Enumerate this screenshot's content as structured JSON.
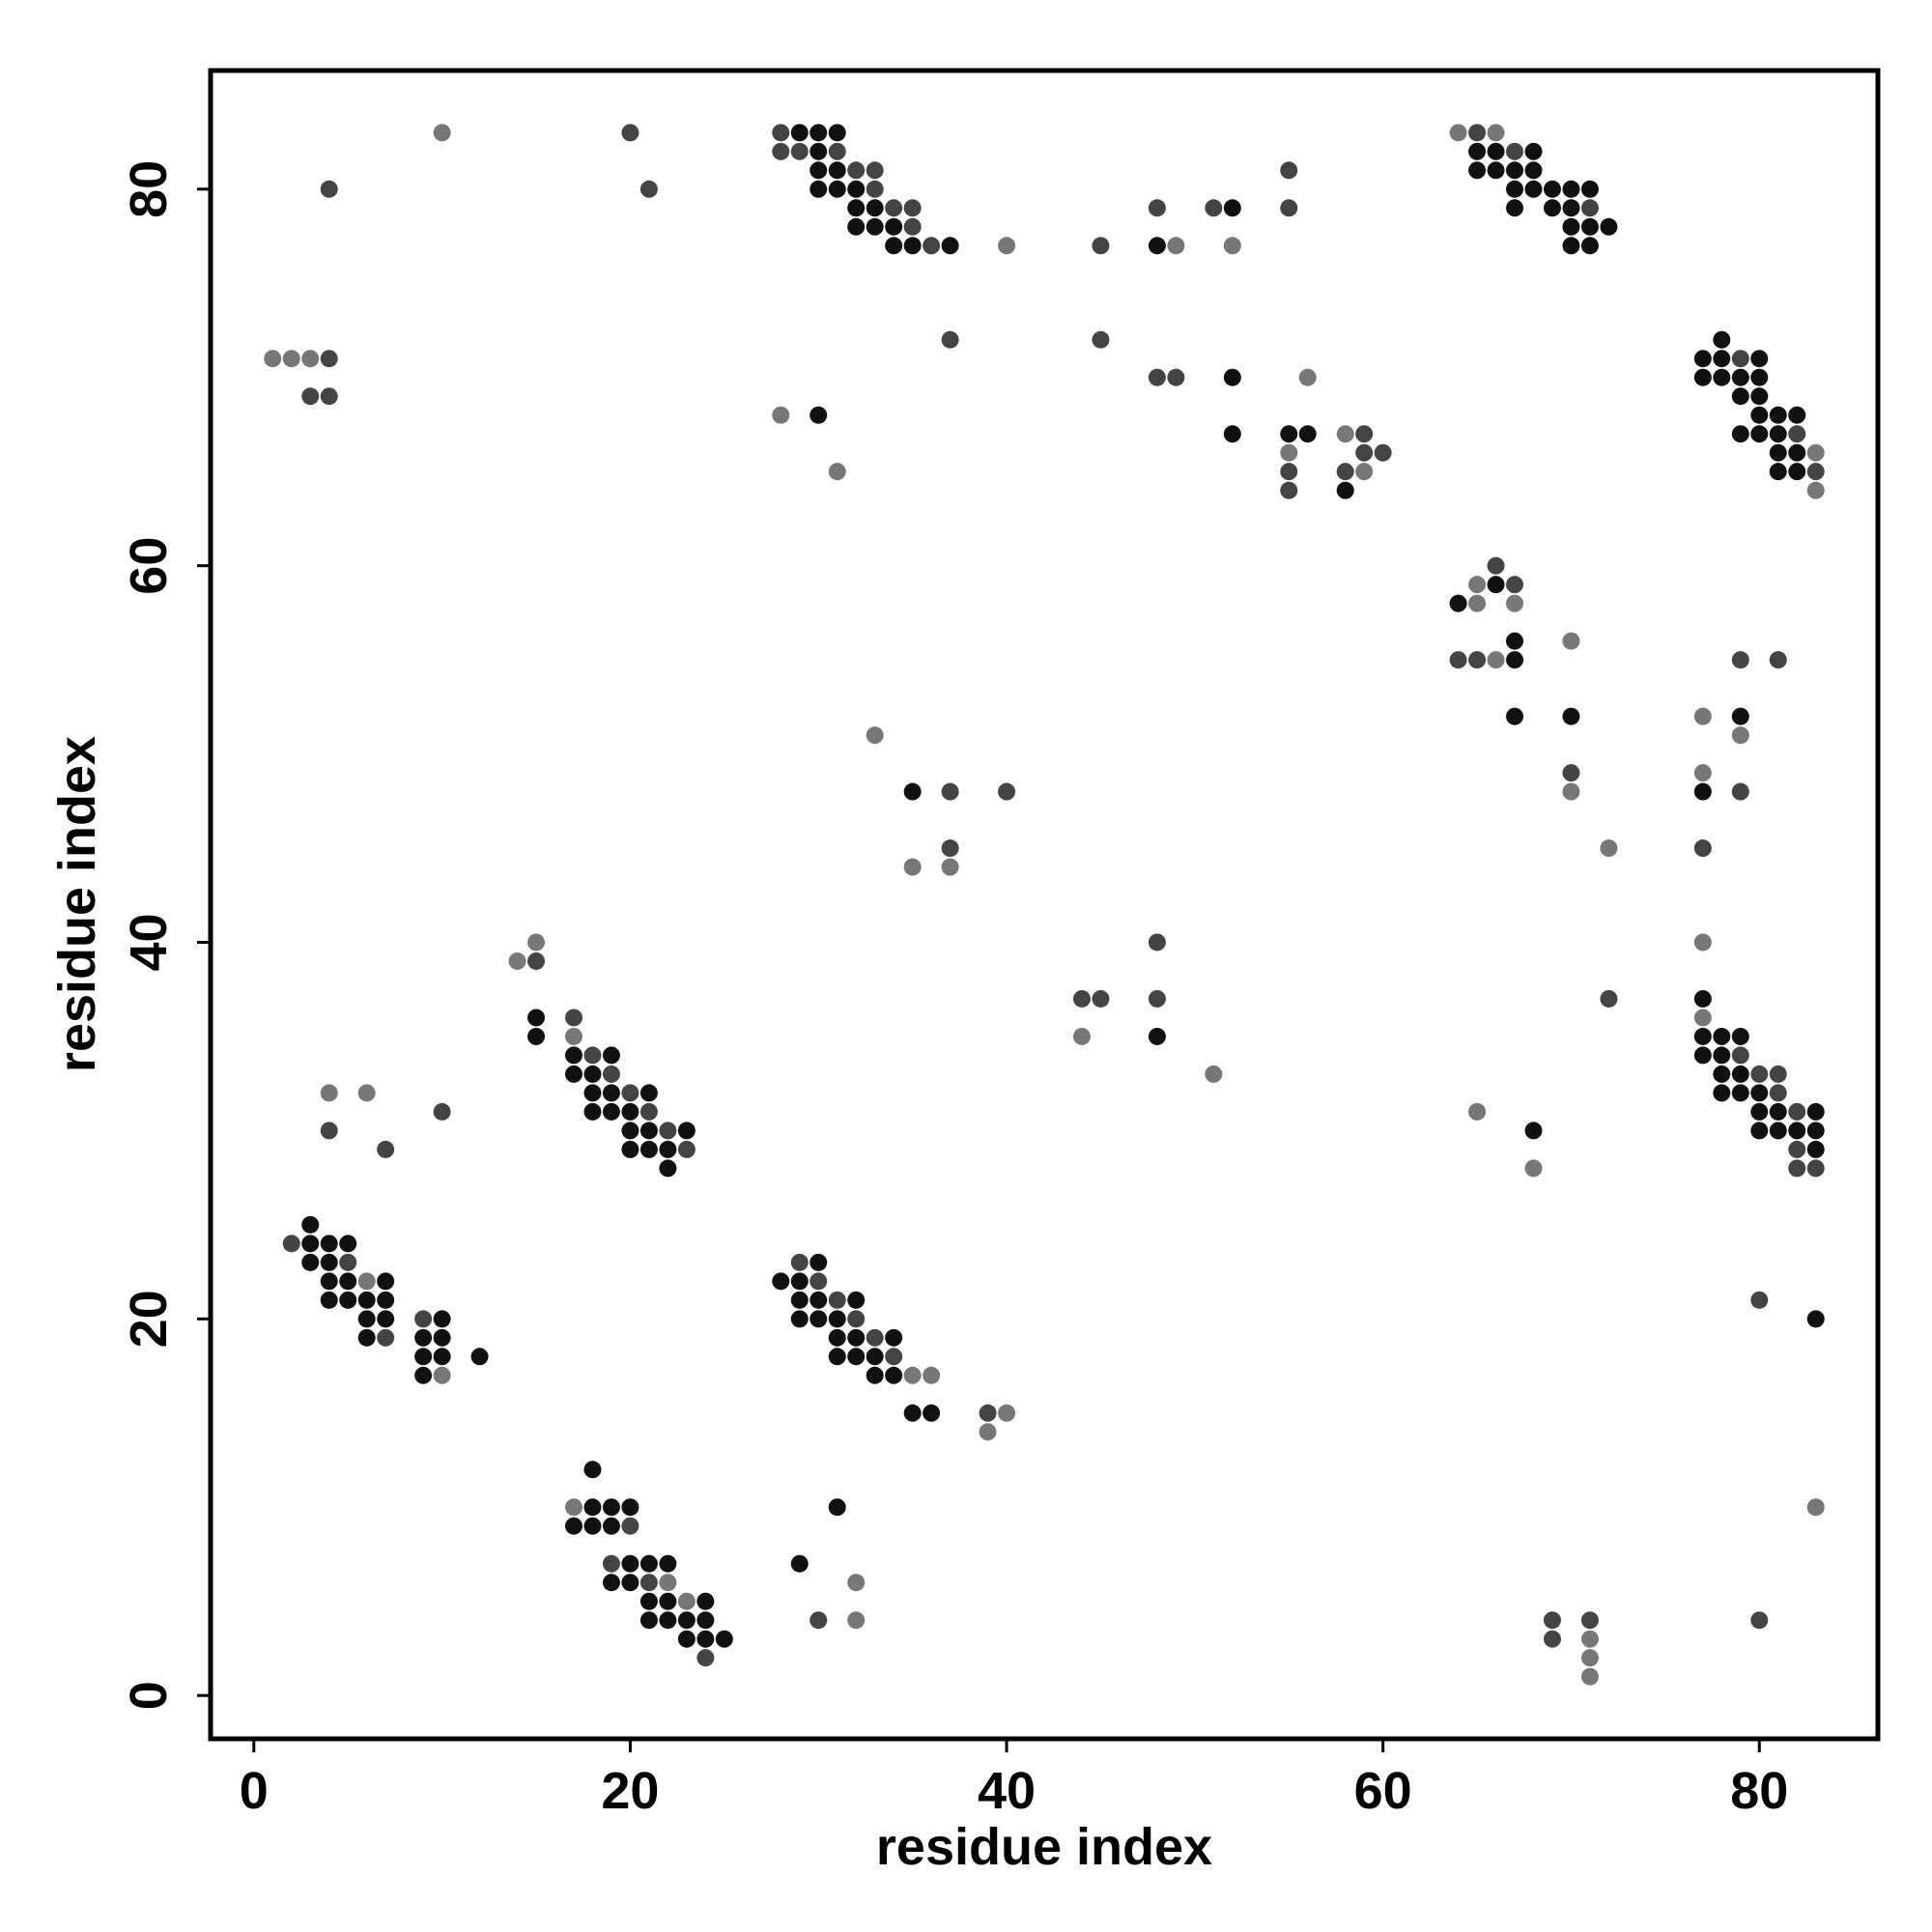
{
  "chart_data": {
    "type": "scatter",
    "title": "",
    "xlabel": "residue index",
    "ylabel": "residue index",
    "xlim": [
      -2.3,
      86.3
    ],
    "ylim": [
      -2.3,
      86.3
    ],
    "xticks": [
      0,
      20,
      40,
      60,
      80
    ],
    "yticks": [
      0,
      20,
      40,
      60,
      80
    ],
    "grid": false,
    "legend": "none",
    "colors": {
      "dark": "#111111",
      "medium": "#444444",
      "light": "#777777"
    },
    "points": [
      [
        10,
        83,
        "light"
      ],
      [
        20,
        83,
        "medium"
      ],
      [
        4,
        80,
        "medium"
      ],
      [
        21,
        80,
        "medium"
      ],
      [
        28,
        83,
        "medium"
      ],
      [
        29,
        83,
        "dark"
      ],
      [
        30,
        83,
        "dark"
      ],
      [
        31,
        83,
        "dark"
      ],
      [
        28,
        82,
        "medium"
      ],
      [
        29,
        82,
        "medium"
      ],
      [
        30,
        82,
        "dark"
      ],
      [
        31,
        82,
        "medium"
      ],
      [
        30,
        81,
        "dark"
      ],
      [
        31,
        81,
        "dark"
      ],
      [
        32,
        81,
        "medium"
      ],
      [
        33,
        81,
        "medium"
      ],
      [
        30,
        80,
        "dark"
      ],
      [
        31,
        80,
        "dark"
      ],
      [
        32,
        80,
        "dark"
      ],
      [
        33,
        80,
        "medium"
      ],
      [
        32,
        79,
        "dark"
      ],
      [
        33,
        79,
        "dark"
      ],
      [
        34,
        79,
        "medium"
      ],
      [
        35,
        79,
        "medium"
      ],
      [
        32,
        78,
        "dark"
      ],
      [
        33,
        78,
        "dark"
      ],
      [
        34,
        78,
        "dark"
      ],
      [
        35,
        78,
        "medium"
      ],
      [
        34,
        77,
        "dark"
      ],
      [
        35,
        77,
        "dark"
      ],
      [
        36,
        77,
        "medium"
      ],
      [
        37,
        77,
        "dark"
      ],
      [
        40,
        77,
        "light"
      ],
      [
        45,
        77,
        "medium"
      ],
      [
        48,
        79,
        "medium"
      ],
      [
        48,
        77,
        "dark"
      ],
      [
        49,
        77,
        "light"
      ],
      [
        51,
        79,
        "medium"
      ],
      [
        52,
        79,
        "dark"
      ],
      [
        52,
        77,
        "light"
      ],
      [
        55,
        81,
        "medium"
      ],
      [
        55,
        79,
        "medium"
      ],
      [
        64,
        83,
        "light"
      ],
      [
        65,
        83,
        "medium"
      ],
      [
        66,
        83,
        "light"
      ],
      [
        65,
        82,
        "dark"
      ],
      [
        66,
        82,
        "dark"
      ],
      [
        67,
        82,
        "medium"
      ],
      [
        68,
        82,
        "dark"
      ],
      [
        65,
        81,
        "dark"
      ],
      [
        66,
        81,
        "dark"
      ],
      [
        67,
        81,
        "dark"
      ],
      [
        68,
        81,
        "dark"
      ],
      [
        67,
        80,
        "dark"
      ],
      [
        68,
        80,
        "dark"
      ],
      [
        69,
        80,
        "dark"
      ],
      [
        70,
        80,
        "dark"
      ],
      [
        71,
        80,
        "dark"
      ],
      [
        67,
        79,
        "dark"
      ],
      [
        69,
        79,
        "dark"
      ],
      [
        70,
        79,
        "dark"
      ],
      [
        71,
        79,
        "medium"
      ],
      [
        70,
        78,
        "dark"
      ],
      [
        71,
        78,
        "dark"
      ],
      [
        72,
        78,
        "dark"
      ],
      [
        70,
        77,
        "dark"
      ],
      [
        71,
        77,
        "dark"
      ],
      [
        1,
        71,
        "light"
      ],
      [
        2,
        71,
        "light"
      ],
      [
        3,
        71,
        "light"
      ],
      [
        4,
        71,
        "medium"
      ],
      [
        3,
        69,
        "medium"
      ],
      [
        4,
        69,
        "medium"
      ],
      [
        37,
        72,
        "medium"
      ],
      [
        45,
        72,
        "medium"
      ],
      [
        48,
        70,
        "medium"
      ],
      [
        49,
        70,
        "medium"
      ],
      [
        52,
        70,
        "dark"
      ],
      [
        56,
        70,
        "light"
      ],
      [
        28,
        68,
        "light"
      ],
      [
        30,
        68,
        "dark"
      ],
      [
        31,
        65,
        "light"
      ],
      [
        52,
        67,
        "dark"
      ],
      [
        55,
        67,
        "dark"
      ],
      [
        56,
        67,
        "dark"
      ],
      [
        55,
        66,
        "light"
      ],
      [
        55,
        65,
        "medium"
      ],
      [
        55,
        64,
        "medium"
      ],
      [
        58,
        67,
        "light"
      ],
      [
        59,
        67,
        "medium"
      ],
      [
        59,
        66,
        "medium"
      ],
      [
        60,
        66,
        "medium"
      ],
      [
        58,
        65,
        "medium"
      ],
      [
        59,
        65,
        "light"
      ],
      [
        58,
        64,
        "dark"
      ],
      [
        78,
        72,
        "dark"
      ],
      [
        77,
        71,
        "dark"
      ],
      [
        78,
        71,
        "dark"
      ],
      [
        79,
        71,
        "medium"
      ],
      [
        80,
        71,
        "dark"
      ],
      [
        77,
        70,
        "dark"
      ],
      [
        78,
        70,
        "dark"
      ],
      [
        79,
        70,
        "dark"
      ],
      [
        80,
        70,
        "dark"
      ],
      [
        79,
        69,
        "dark"
      ],
      [
        80,
        69,
        "dark"
      ],
      [
        80,
        68,
        "dark"
      ],
      [
        81,
        68,
        "dark"
      ],
      [
        82,
        68,
        "dark"
      ],
      [
        79,
        67,
        "dark"
      ],
      [
        80,
        67,
        "dark"
      ],
      [
        81,
        67,
        "dark"
      ],
      [
        82,
        67,
        "medium"
      ],
      [
        81,
        66,
        "dark"
      ],
      [
        82,
        66,
        "dark"
      ],
      [
        83,
        66,
        "light"
      ],
      [
        81,
        65,
        "dark"
      ],
      [
        82,
        65,
        "dark"
      ],
      [
        83,
        65,
        "medium"
      ],
      [
        83,
        64,
        "light"
      ],
      [
        66,
        60,
        "medium"
      ],
      [
        65,
        59,
        "light"
      ],
      [
        66,
        59,
        "dark"
      ],
      [
        67,
        59,
        "medium"
      ],
      [
        64,
        58,
        "dark"
      ],
      [
        65,
        58,
        "light"
      ],
      [
        67,
        58,
        "light"
      ],
      [
        67,
        56,
        "dark"
      ],
      [
        64,
        55,
        "medium"
      ],
      [
        65,
        55,
        "medium"
      ],
      [
        66,
        55,
        "light"
      ],
      [
        67,
        55,
        "dark"
      ],
      [
        70,
        56,
        "light"
      ],
      [
        67,
        52,
        "dark"
      ],
      [
        70,
        52,
        "dark"
      ],
      [
        70,
        49,
        "medium"
      ],
      [
        70,
        48,
        "light"
      ],
      [
        72,
        45,
        "light"
      ],
      [
        72,
        37,
        "medium"
      ],
      [
        79,
        55,
        "medium"
      ],
      [
        81,
        55,
        "medium"
      ],
      [
        77,
        52,
        "light"
      ],
      [
        79,
        52,
        "dark"
      ],
      [
        79,
        51,
        "light"
      ],
      [
        77,
        49,
        "light"
      ],
      [
        77,
        48,
        "dark"
      ],
      [
        79,
        48,
        "medium"
      ],
      [
        77,
        45,
        "medium"
      ],
      [
        77,
        40,
        "light"
      ],
      [
        33,
        51,
        "light"
      ],
      [
        35,
        48,
        "dark"
      ],
      [
        37,
        48,
        "medium"
      ],
      [
        40,
        48,
        "medium"
      ],
      [
        37,
        45,
        "medium"
      ],
      [
        35,
        44,
        "light"
      ],
      [
        37,
        44,
        "light"
      ],
      [
        44,
        37,
        "medium"
      ],
      [
        45,
        37,
        "medium"
      ],
      [
        44,
        35,
        "light"
      ],
      [
        48,
        40,
        "medium"
      ],
      [
        48,
        37,
        "medium"
      ],
      [
        48,
        35,
        "dark"
      ],
      [
        51,
        33,
        "light"
      ],
      [
        15,
        40,
        "light"
      ],
      [
        14,
        39,
        "light"
      ],
      [
        15,
        39,
        "medium"
      ],
      [
        15,
        36,
        "dark"
      ],
      [
        15,
        35,
        "dark"
      ],
      [
        17,
        36,
        "medium"
      ],
      [
        17,
        35,
        "light"
      ],
      [
        17,
        34,
        "dark"
      ],
      [
        18,
        34,
        "medium"
      ],
      [
        19,
        34,
        "dark"
      ],
      [
        17,
        33,
        "dark"
      ],
      [
        18,
        33,
        "dark"
      ],
      [
        19,
        33,
        "medium"
      ],
      [
        18,
        32,
        "dark"
      ],
      [
        19,
        32,
        "dark"
      ],
      [
        20,
        32,
        "medium"
      ],
      [
        21,
        32,
        "dark"
      ],
      [
        18,
        31,
        "dark"
      ],
      [
        19,
        31,
        "dark"
      ],
      [
        20,
        31,
        "dark"
      ],
      [
        21,
        31,
        "medium"
      ],
      [
        20,
        30,
        "dark"
      ],
      [
        21,
        30,
        "dark"
      ],
      [
        22,
        30,
        "medium"
      ],
      [
        23,
        30,
        "dark"
      ],
      [
        20,
        29,
        "dark"
      ],
      [
        21,
        29,
        "dark"
      ],
      [
        22,
        29,
        "dark"
      ],
      [
        23,
        29,
        "medium"
      ],
      [
        22,
        28,
        "dark"
      ],
      [
        4,
        32,
        "light"
      ],
      [
        6,
        32,
        "light"
      ],
      [
        4,
        30,
        "medium"
      ],
      [
        7,
        29,
        "medium"
      ],
      [
        10,
        31,
        "medium"
      ],
      [
        77,
        37,
        "dark"
      ],
      [
        77,
        36,
        "light"
      ],
      [
        77,
        35,
        "dark"
      ],
      [
        78,
        35,
        "dark"
      ],
      [
        79,
        35,
        "dark"
      ],
      [
        77,
        34,
        "dark"
      ],
      [
        78,
        34,
        "dark"
      ],
      [
        79,
        34,
        "medium"
      ],
      [
        78,
        33,
        "dark"
      ],
      [
        79,
        33,
        "dark"
      ],
      [
        80,
        33,
        "medium"
      ],
      [
        81,
        33,
        "medium"
      ],
      [
        78,
        32,
        "dark"
      ],
      [
        79,
        32,
        "dark"
      ],
      [
        80,
        32,
        "dark"
      ],
      [
        81,
        32,
        "medium"
      ],
      [
        80,
        31,
        "dark"
      ],
      [
        81,
        31,
        "dark"
      ],
      [
        82,
        31,
        "medium"
      ],
      [
        83,
        31,
        "dark"
      ],
      [
        80,
        30,
        "dark"
      ],
      [
        81,
        30,
        "dark"
      ],
      [
        82,
        30,
        "dark"
      ],
      [
        83,
        30,
        "dark"
      ],
      [
        82,
        29,
        "medium"
      ],
      [
        83,
        29,
        "dark"
      ],
      [
        82,
        28,
        "medium"
      ],
      [
        83,
        28,
        "medium"
      ],
      [
        65,
        31,
        "light"
      ],
      [
        68,
        30,
        "dark"
      ],
      [
        68,
        28,
        "light"
      ],
      [
        3,
        25,
        "dark"
      ],
      [
        2,
        24,
        "medium"
      ],
      [
        3,
        24,
        "dark"
      ],
      [
        4,
        24,
        "dark"
      ],
      [
        5,
        24,
        "dark"
      ],
      [
        3,
        23,
        "dark"
      ],
      [
        4,
        23,
        "dark"
      ],
      [
        5,
        23,
        "medium"
      ],
      [
        4,
        22,
        "dark"
      ],
      [
        5,
        22,
        "dark"
      ],
      [
        6,
        22,
        "light"
      ],
      [
        7,
        22,
        "dark"
      ],
      [
        4,
        21,
        "dark"
      ],
      [
        5,
        21,
        "dark"
      ],
      [
        6,
        21,
        "dark"
      ],
      [
        7,
        21,
        "dark"
      ],
      [
        6,
        20,
        "dark"
      ],
      [
        7,
        20,
        "dark"
      ],
      [
        9,
        20,
        "medium"
      ],
      [
        10,
        20,
        "dark"
      ],
      [
        6,
        19,
        "dark"
      ],
      [
        7,
        19,
        "medium"
      ],
      [
        9,
        19,
        "dark"
      ],
      [
        10,
        19,
        "dark"
      ],
      [
        9,
        18,
        "dark"
      ],
      [
        10,
        18,
        "dark"
      ],
      [
        12,
        18,
        "dark"
      ],
      [
        9,
        17,
        "dark"
      ],
      [
        10,
        17,
        "light"
      ],
      [
        29,
        23,
        "medium"
      ],
      [
        30,
        23,
        "dark"
      ],
      [
        28,
        22,
        "dark"
      ],
      [
        29,
        22,
        "dark"
      ],
      [
        30,
        22,
        "medium"
      ],
      [
        29,
        21,
        "dark"
      ],
      [
        30,
        21,
        "dark"
      ],
      [
        31,
        21,
        "medium"
      ],
      [
        32,
        21,
        "dark"
      ],
      [
        29,
        20,
        "dark"
      ],
      [
        30,
        20,
        "dark"
      ],
      [
        31,
        20,
        "dark"
      ],
      [
        32,
        20,
        "medium"
      ],
      [
        31,
        19,
        "dark"
      ],
      [
        32,
        19,
        "dark"
      ],
      [
        33,
        19,
        "medium"
      ],
      [
        34,
        19,
        "dark"
      ],
      [
        31,
        18,
        "dark"
      ],
      [
        32,
        18,
        "dark"
      ],
      [
        33,
        18,
        "dark"
      ],
      [
        34,
        18,
        "medium"
      ],
      [
        33,
        17,
        "dark"
      ],
      [
        34,
        17,
        "dark"
      ],
      [
        35,
        17,
        "light"
      ],
      [
        36,
        17,
        "light"
      ],
      [
        35,
        15,
        "dark"
      ],
      [
        36,
        15,
        "dark"
      ],
      [
        39,
        15,
        "medium"
      ],
      [
        40,
        15,
        "light"
      ],
      [
        39,
        14,
        "light"
      ],
      [
        80,
        21,
        "medium"
      ],
      [
        83,
        20,
        "dark"
      ],
      [
        83,
        10,
        "light"
      ],
      [
        80,
        4,
        "medium"
      ],
      [
        18,
        12,
        "dark"
      ],
      [
        17,
        10,
        "light"
      ],
      [
        18,
        10,
        "dark"
      ],
      [
        19,
        10,
        "dark"
      ],
      [
        20,
        10,
        "dark"
      ],
      [
        17,
        9,
        "dark"
      ],
      [
        18,
        9,
        "dark"
      ],
      [
        19,
        9,
        "dark"
      ],
      [
        20,
        9,
        "medium"
      ],
      [
        19,
        7,
        "medium"
      ],
      [
        20,
        7,
        "dark"
      ],
      [
        21,
        7,
        "dark"
      ],
      [
        22,
        7,
        "dark"
      ],
      [
        19,
        6,
        "dark"
      ],
      [
        20,
        6,
        "dark"
      ],
      [
        21,
        6,
        "medium"
      ],
      [
        22,
        6,
        "light"
      ],
      [
        21,
        5,
        "dark"
      ],
      [
        22,
        5,
        "dark"
      ],
      [
        23,
        5,
        "light"
      ],
      [
        24,
        5,
        "dark"
      ],
      [
        21,
        4,
        "dark"
      ],
      [
        22,
        4,
        "dark"
      ],
      [
        23,
        4,
        "dark"
      ],
      [
        24,
        4,
        "dark"
      ],
      [
        23,
        3,
        "dark"
      ],
      [
        24,
        3,
        "dark"
      ],
      [
        25,
        3,
        "dark"
      ],
      [
        24,
        2,
        "medium"
      ],
      [
        31,
        10,
        "dark"
      ],
      [
        29,
        7,
        "dark"
      ],
      [
        32,
        6,
        "light"
      ],
      [
        30,
        4,
        "medium"
      ],
      [
        32,
        4,
        "light"
      ],
      [
        69,
        4,
        "medium"
      ],
      [
        69,
        3,
        "medium"
      ],
      [
        71,
        4,
        "medium"
      ],
      [
        71,
        3,
        "light"
      ],
      [
        71,
        2,
        "light"
      ],
      [
        71,
        1,
        "light"
      ]
    ]
  }
}
